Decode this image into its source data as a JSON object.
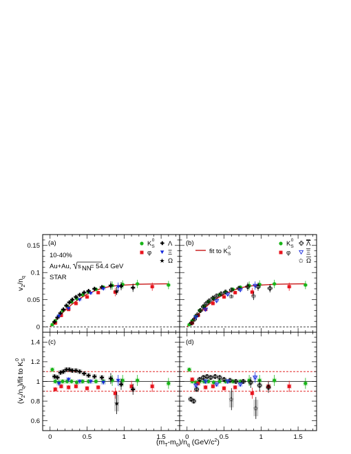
{
  "chart_data": [
    {
      "panel": "(a)",
      "type": "scatter",
      "xlim": [
        -0.1,
        1.75
      ],
      "ylim": [
        -0.01,
        0.17
      ],
      "ylabel": "v2/nq",
      "yticks": [
        "0",
        "0.05",
        "0.1",
        "0.15"
      ],
      "annotations": [
        "10-40%",
        "Au+Au, √sNN = 54.4 GeV",
        "STAR"
      ],
      "legend": [
        "K0S",
        "φ",
        "Λ",
        "Ξ",
        "Ω"
      ],
      "series": [
        {
          "name": "K0S",
          "x": [
            0.03,
            0.07,
            0.12,
            0.17,
            0.23,
            0.29,
            0.36,
            0.44,
            0.52,
            0.62,
            0.72,
            0.84,
            0.98,
            1.18,
            1.6
          ],
          "y": [
            0.004,
            0.011,
            0.02,
            0.03,
            0.038,
            0.046,
            0.052,
            0.059,
            0.064,
            0.069,
            0.073,
            0.076,
            0.078,
            0.079,
            0.077
          ]
        },
        {
          "name": "φ",
          "x": [
            0.07,
            0.15,
            0.25,
            0.35,
            0.5,
            0.65,
            0.88,
            1.38
          ],
          "y": [
            0.007,
            0.021,
            0.032,
            0.043,
            0.055,
            0.063,
            0.064,
            0.074
          ]
        },
        {
          "name": "Λ",
          "x": [
            0.06,
            0.1,
            0.14,
            0.18,
            0.22,
            0.26,
            0.3,
            0.35,
            0.4,
            0.46,
            0.52,
            0.6,
            0.7,
            0.82,
            0.96,
            1.12
          ],
          "y": [
            0.009,
            0.017,
            0.025,
            0.032,
            0.039,
            0.045,
            0.05,
            0.055,
            0.059,
            0.063,
            0.066,
            0.07,
            0.073,
            0.076,
            0.075,
            0.072
          ]
        },
        {
          "name": "Ξ",
          "x": [
            0.12,
            0.25,
            0.4,
            0.55,
            0.72,
            0.92
          ],
          "y": [
            0.02,
            0.034,
            0.05,
            0.062,
            0.07,
            0.074
          ]
        },
        {
          "name": "Ω",
          "x": [
            0.9
          ],
          "y": [
            0.066
          ]
        }
      ],
      "fit_curve": {
        "x": [
          0.0,
          0.1,
          0.2,
          0.3,
          0.4,
          0.5,
          0.6,
          0.7,
          0.8,
          0.9,
          1.0,
          1.2,
          1.4,
          1.6
        ],
        "y": [
          0.0,
          0.016,
          0.03,
          0.042,
          0.052,
          0.06,
          0.066,
          0.071,
          0.074,
          0.076,
          0.077,
          0.0785,
          0.079,
          0.0792
        ]
      }
    },
    {
      "panel": "(b)",
      "type": "scatter",
      "xlim": [
        -0.1,
        1.75
      ],
      "ylim": [
        -0.01,
        0.17
      ],
      "legend": [
        "fit to K0S",
        "K0S",
        "φ",
        "Λ̄",
        "Ξ̄",
        "Ω̄"
      ],
      "series": [
        {
          "name": "K0S",
          "x": [
            0.03,
            0.07,
            0.12,
            0.17,
            0.23,
            0.29,
            0.36,
            0.44,
            0.52,
            0.62,
            0.72,
            0.84,
            0.98,
            1.18,
            1.6
          ],
          "y": [
            0.004,
            0.011,
            0.02,
            0.03,
            0.038,
            0.046,
            0.052,
            0.059,
            0.064,
            0.069,
            0.073,
            0.076,
            0.078,
            0.079,
            0.077
          ]
        },
        {
          "name": "φ",
          "x": [
            0.07,
            0.15,
            0.25,
            0.35,
            0.5,
            0.65,
            0.88,
            1.38
          ],
          "y": [
            0.007,
            0.021,
            0.032,
            0.043,
            0.055,
            0.063,
            0.064,
            0.074
          ]
        },
        {
          "name": "Λ̄",
          "x": [
            0.06,
            0.1,
            0.14,
            0.18,
            0.22,
            0.26,
            0.3,
            0.35,
            0.4,
            0.46,
            0.52,
            0.6,
            0.7,
            0.82,
            0.96,
            1.12
          ],
          "y": [
            0.007,
            0.014,
            0.022,
            0.03,
            0.037,
            0.043,
            0.048,
            0.053,
            0.057,
            0.061,
            0.064,
            0.068,
            0.071,
            0.074,
            0.074,
            0.071
          ]
        },
        {
          "name": "Ξ̄",
          "x": [
            0.12,
            0.25,
            0.4,
            0.55,
            0.72,
            0.92
          ],
          "y": [
            0.018,
            0.032,
            0.048,
            0.06,
            0.068,
            0.076
          ]
        },
        {
          "name": "Ω̄",
          "x": [
            0.6,
            0.9
          ],
          "y": [
            0.056,
            0.057
          ]
        }
      ],
      "fit_curve": {
        "x": [
          0.0,
          0.1,
          0.2,
          0.3,
          0.4,
          0.5,
          0.6,
          0.7,
          0.8,
          0.9,
          1.0,
          1.2,
          1.4,
          1.6
        ],
        "y": [
          0.0,
          0.016,
          0.03,
          0.042,
          0.052,
          0.06,
          0.066,
          0.071,
          0.074,
          0.076,
          0.077,
          0.0785,
          0.079,
          0.0792
        ]
      }
    },
    {
      "panel": "(c)",
      "type": "scatter",
      "xlim": [
        -0.1,
        1.75
      ],
      "ylim": [
        0.5,
        1.5
      ],
      "ylabel": "(v2/nq)/fit to K0S",
      "yticks": [
        "0.6",
        "0.8",
        "1",
        "1.2",
        "1.4"
      ],
      "xticks": [
        "0",
        "0.5",
        "1",
        "1.5"
      ],
      "reference_lines": [
        1.0,
        1.1,
        0.9
      ],
      "series": [
        {
          "name": "K0S",
          "x": [
            0.03,
            0.07,
            0.12,
            0.17,
            0.23,
            0.29,
            0.36,
            0.44,
            0.52,
            0.62,
            0.72,
            0.84,
            0.98,
            1.18,
            1.6
          ],
          "y": [
            1.12,
            1.0,
            0.99,
            1.0,
            1.0,
            1.0,
            0.99,
            1.0,
            1.0,
            1.0,
            1.0,
            1.01,
            1.01,
            1.01,
            0.98
          ]
        },
        {
          "name": "φ",
          "x": [
            0.07,
            0.15,
            0.25,
            0.35,
            0.5,
            0.65,
            0.88,
            1.1,
            1.38
          ],
          "y": [
            0.92,
            0.95,
            0.94,
            0.95,
            0.93,
            0.94,
            0.88,
            0.95,
            0.95
          ]
        },
        {
          "name": "Λ",
          "x": [
            0.06,
            0.1,
            0.14,
            0.18,
            0.22,
            0.26,
            0.3,
            0.35,
            0.4,
            0.46,
            0.52,
            0.6,
            0.7,
            0.82,
            0.96,
            1.12
          ],
          "y": [
            1.05,
            1.04,
            1.09,
            1.1,
            1.12,
            1.12,
            1.11,
            1.11,
            1.1,
            1.08,
            1.06,
            1.05,
            1.04,
            1.03,
            0.97,
            0.92
          ]
        },
        {
          "name": "Ξ",
          "x": [
            0.12,
            0.25,
            0.4,
            0.55,
            0.72,
            0.92
          ],
          "y": [
            0.98,
            1.02,
            1.0,
            1.0,
            0.99,
            1.01
          ]
        },
        {
          "name": "Ω",
          "x": [
            0.9
          ],
          "y": [
            0.78
          ]
        }
      ]
    },
    {
      "panel": "(d)",
      "type": "scatter",
      "xlim": [
        -0.1,
        1.75
      ],
      "ylim": [
        0.5,
        1.5
      ],
      "xticks": [
        "0",
        "0.5",
        "1",
        "1.5"
      ],
      "reference_lines": [
        1.0,
        1.1,
        0.9
      ],
      "series": [
        {
          "name": "K0S",
          "x": [
            0.03,
            0.07,
            0.12,
            0.17,
            0.23,
            0.29,
            0.36,
            0.44,
            0.52,
            0.62,
            0.72,
            0.84,
            0.98,
            1.18,
            1.6
          ],
          "y": [
            1.12,
            1.0,
            0.99,
            1.0,
            1.0,
            1.0,
            0.99,
            1.0,
            1.0,
            1.0,
            1.0,
            1.01,
            1.01,
            1.01,
            0.98
          ]
        },
        {
          "name": "φ",
          "x": [
            0.07,
            0.15,
            0.25,
            0.35,
            0.5,
            0.65,
            0.88,
            1.1,
            1.38
          ],
          "y": [
            1.02,
            0.98,
            0.94,
            0.95,
            0.93,
            0.94,
            0.88,
            0.95,
            0.95
          ]
        },
        {
          "name": "Λ̄",
          "x": [
            0.05,
            0.09,
            0.13,
            0.17,
            0.22,
            0.27,
            0.32,
            0.38,
            0.44,
            0.5,
            0.58,
            0.66,
            0.76,
            0.86,
            0.98,
            1.1
          ],
          "y": [
            0.82,
            0.8,
            0.92,
            1.02,
            1.04,
            1.05,
            1.04,
            1.05,
            1.04,
            1.02,
            1.01,
            1.0,
            1.0,
            0.99,
            0.96,
            0.94
          ]
        },
        {
          "name": "Ξ̄",
          "x": [
            0.12,
            0.25,
            0.4,
            0.55,
            0.72,
            0.92
          ],
          "y": [
            0.96,
            1.0,
            0.97,
            1.0,
            0.97,
            1.04
          ]
        },
        {
          "name": "Ω̄",
          "x": [
            0.6,
            0.93
          ],
          "y": [
            0.82,
            0.73
          ]
        }
      ]
    }
  ],
  "xlabel": "(mT-m0)/nq (GeV/c2)",
  "colors": {
    "K0S": "#18b418",
    "phi": "#e8141e",
    "Lambda": "#000000",
    "Xi": "#1428dc",
    "Omega": "#000000",
    "fit": "#c81414",
    "ref": "#dd0000"
  }
}
